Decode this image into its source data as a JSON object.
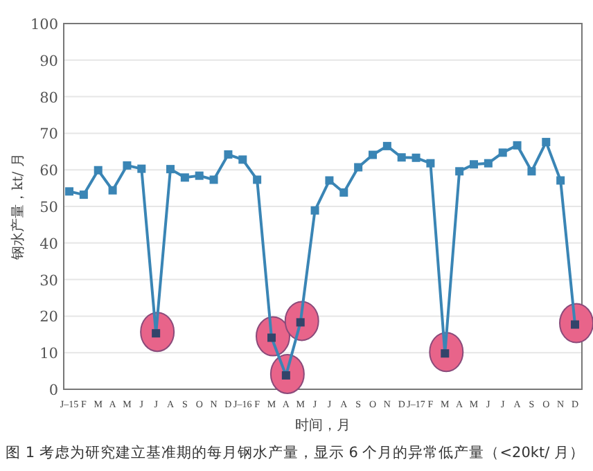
{
  "chart_data": {
    "type": "line",
    "xlabel": "时间，月",
    "ylabel": "钢水产量，kt/ 月",
    "annotations": [
      "图 1 考虑为研究建立基准期的每月钢水产量，显示 6 个月的异常低产量（<20kt/ 月）"
    ],
    "categories": [
      "J–15",
      "F",
      "M",
      "A",
      "M",
      "J",
      "J",
      "A",
      "S",
      "O",
      "N",
      "D",
      "J–16",
      "F",
      "M",
      "A",
      "M",
      "J",
      "J",
      "A",
      "S",
      "O",
      "N",
      "D",
      "J–17",
      "F",
      "M",
      "A",
      "M",
      "J",
      "J",
      "A",
      "S",
      "O",
      "N",
      "D"
    ],
    "series": [
      {
        "color": "#3a85b5",
        "values": [
          54.1,
          53.2,
          59.9,
          54.4,
          61.2,
          60.3,
          15.3,
          60.2,
          57.9,
          58.4,
          57.3,
          64.2,
          62.8,
          57.3,
          14.1,
          3.8,
          18.3,
          48.9,
          57.1,
          53.8,
          60.7,
          64.1,
          66.5,
          63.4,
          63.3,
          61.8,
          9.8,
          59.6,
          61.5,
          61.8,
          64.7,
          66.7,
          59.6,
          67.6,
          57.1,
          17.7
        ]
      }
    ],
    "ylim": [
      0,
      100
    ],
    "yticks": [
      0,
      10,
      20,
      30,
      40,
      50,
      60,
      70,
      80,
      90,
      100
    ],
    "grid": "y",
    "marker": "square",
    "line_style": "solid"
  }
}
